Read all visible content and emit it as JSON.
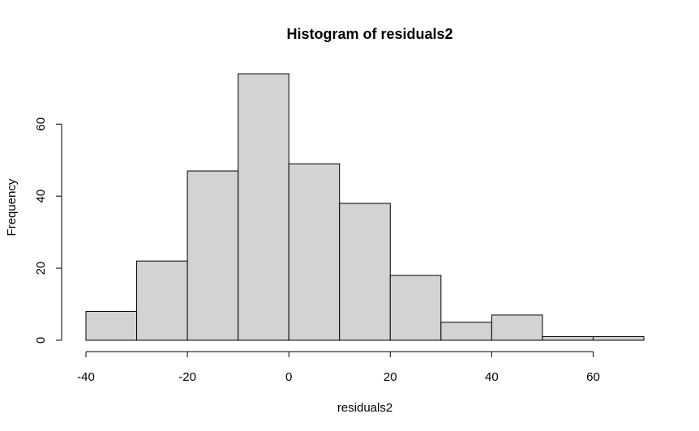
{
  "chart_data": {
    "type": "bar",
    "title": "Histogram of residuals2",
    "xlabel": "residuals2",
    "ylabel": "Frequency",
    "bins": [
      {
        "from": -40,
        "to": -30,
        "count": 8
      },
      {
        "from": -30,
        "to": -20,
        "count": 22
      },
      {
        "from": -20,
        "to": -10,
        "count": 47
      },
      {
        "from": -10,
        "to": 0,
        "count": 74
      },
      {
        "from": 0,
        "to": 10,
        "count": 49
      },
      {
        "from": 10,
        "to": 20,
        "count": 38
      },
      {
        "from": 20,
        "to": 30,
        "count": 18
      },
      {
        "from": 30,
        "to": 40,
        "count": 5
      },
      {
        "from": 40,
        "to": 50,
        "count": 7
      },
      {
        "from": 50,
        "to": 60,
        "count": 1
      },
      {
        "from": 60,
        "to": 70,
        "count": 1
      }
    ],
    "xlim": [
      -40,
      70
    ],
    "ylim": [
      0,
      74
    ],
    "x_ticks": [
      {
        "value": -40,
        "label": "-40"
      },
      {
        "value": -20,
        "label": "-20"
      },
      {
        "value": 0,
        "label": "0"
      },
      {
        "value": 20,
        "label": "20"
      },
      {
        "value": 40,
        "label": "40"
      },
      {
        "value": 60,
        "label": "60"
      }
    ],
    "y_ticks": [
      {
        "value": 0,
        "label": "0"
      },
      {
        "value": 20,
        "label": "20"
      },
      {
        "value": 40,
        "label": "40"
      },
      {
        "value": 60,
        "label": "60"
      }
    ],
    "grid": false,
    "bar_color": "#d3d3d3",
    "edge_color": "#000000"
  }
}
